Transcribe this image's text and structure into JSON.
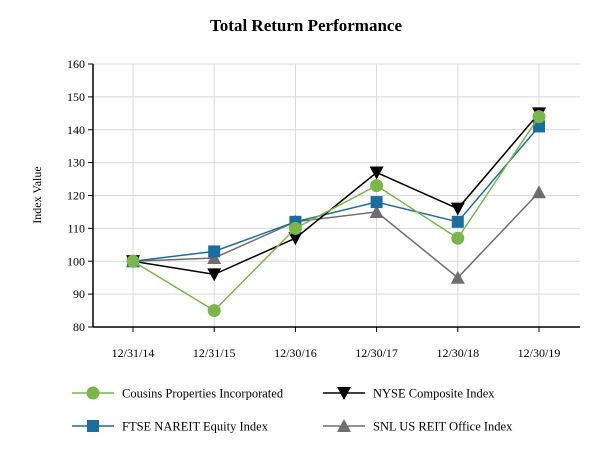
{
  "chart_data": {
    "type": "line",
    "title": "Total Return Performance",
    "xlabel": "",
    "ylabel": "Index Value",
    "ylim": [
      80,
      160
    ],
    "yticks": [
      80,
      90,
      100,
      110,
      120,
      130,
      140,
      150,
      160
    ],
    "grid": true,
    "categories": [
      "12/31/14",
      "12/31/15",
      "12/30/16",
      "12/30/17",
      "12/30/18",
      "12/30/19"
    ],
    "series": [
      {
        "name": "Cousins Properties Incorporated",
        "marker": "circle",
        "color": "#7ab648",
        "values": [
          100,
          85,
          110,
          123,
          107,
          144
        ]
      },
      {
        "name": "NYSE Composite Index",
        "marker": "triangle-down",
        "color": "#000000",
        "values": [
          100,
          96,
          107,
          127,
          116,
          145
        ]
      },
      {
        "name": "FTSE NAREIT Equity Index",
        "marker": "square",
        "color": "#1a6e9e",
        "values": [
          100,
          103,
          112,
          118,
          112,
          141
        ]
      },
      {
        "name": "SNL US REIT Office Index",
        "marker": "triangle-up",
        "color": "#6e6e6e",
        "values": [
          100,
          101,
          112,
          115,
          95,
          121
        ]
      }
    ],
    "legend_position": "bottom"
  }
}
